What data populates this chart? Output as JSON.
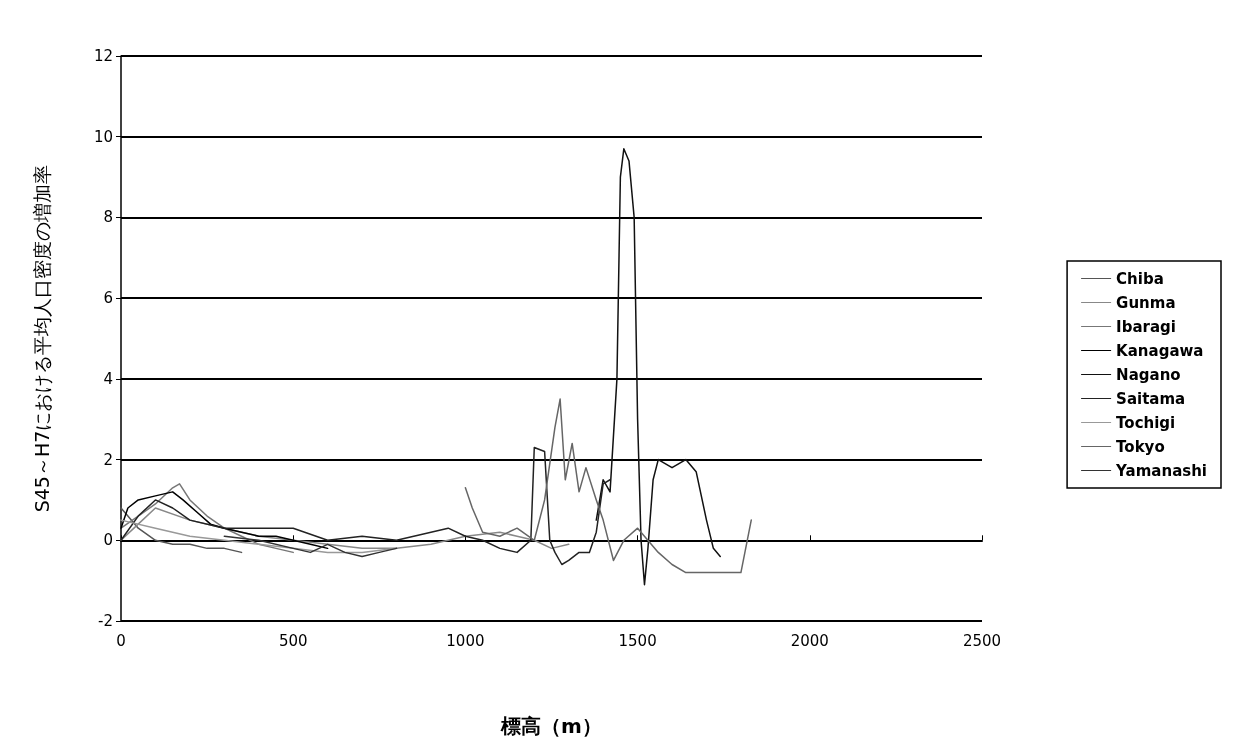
{
  "chart_data": {
    "type": "line",
    "xlabel": "標高（m）",
    "ylabel": "S45～H7における平均人口密度の増加率",
    "xlim": [
      0,
      2500
    ],
    "xticks": [
      0,
      500,
      1000,
      1500,
      2000,
      2500
    ],
    "ylim": [
      -2,
      12
    ],
    "yticks": [
      -2,
      0,
      2,
      4,
      6,
      8,
      10,
      12
    ],
    "grid": "y",
    "legend": "right",
    "marker": "none",
    "line_style": "solid",
    "series": [
      {
        "name": "Chiba",
        "color": "#555555",
        "x": [
          0,
          20,
          50,
          100,
          150,
          200,
          250,
          300,
          350
        ],
        "values": [
          0.8,
          0.6,
          0.3,
          0.0,
          -0.1,
          -0.1,
          -0.2,
          -0.2,
          -0.3
        ]
      },
      {
        "name": "Gunma",
        "color": "#888888",
        "x": [
          0,
          50,
          100,
          200,
          300,
          400,
          500,
          600,
          700,
          800,
          900,
          1000,
          1100,
          1150,
          1200,
          1250,
          1300
        ],
        "values": [
          0.0,
          0.4,
          0.8,
          0.5,
          0.3,
          0.1,
          0.0,
          -0.1,
          -0.2,
          -0.2,
          -0.1,
          0.1,
          0.2,
          0.1,
          0.0,
          -0.2,
          -0.1
        ]
      },
      {
        "name": "Ibaragi",
        "color": "#777777",
        "x": [
          0,
          50,
          100,
          150,
          170,
          200,
          250,
          300,
          350,
          400,
          450,
          500
        ],
        "values": [
          0.3,
          0.6,
          0.9,
          1.3,
          1.4,
          1.0,
          0.6,
          0.3,
          0.1,
          -0.1,
          -0.2,
          -0.3
        ]
      },
      {
        "name": "Kanagawa",
        "color": "#000000",
        "x": [
          0,
          20,
          50,
          100,
          150,
          180,
          220,
          260,
          300,
          350,
          400,
          450,
          500,
          550,
          600
        ],
        "values": [
          0.3,
          0.8,
          1.0,
          1.1,
          1.2,
          1.0,
          0.7,
          0.4,
          0.3,
          0.2,
          0.1,
          0.1,
          0.0,
          -0.1,
          -0.2
        ]
      },
      {
        "name": "Nagano",
        "color": "#111111",
        "x": [
          1380,
          1400,
          1420,
          1440,
          1450,
          1460,
          1475,
          1490,
          1500,
          1510,
          1520,
          1530,
          1545,
          1560,
          1600,
          1640,
          1670,
          1700,
          1720,
          1740
        ],
        "values": [
          0.5,
          1.5,
          1.2,
          4.0,
          9.0,
          9.7,
          9.4,
          8.0,
          3.0,
          0.0,
          -1.1,
          -0.2,
          1.5,
          2.0,
          1.8,
          2.0,
          1.7,
          0.5,
          -0.2,
          -0.4
        ]
      },
      {
        "name": "Saitama",
        "color": "#222222",
        "x": [
          0,
          50,
          100,
          150,
          200,
          300,
          400,
          500,
          600,
          700,
          800,
          900,
          950,
          1000,
          1050,
          1100,
          1150,
          1190,
          1200,
          1230,
          1245,
          1260,
          1280,
          1300,
          1330,
          1360,
          1380,
          1400,
          1420
        ],
        "values": [
          0.0,
          0.6,
          1.0,
          0.8,
          0.5,
          0.3,
          0.3,
          0.3,
          0.0,
          0.1,
          0.0,
          0.2,
          0.3,
          0.1,
          0.0,
          -0.2,
          -0.3,
          0.0,
          2.3,
          2.2,
          0.0,
          -0.3,
          -0.6,
          -0.5,
          -0.3,
          -0.3,
          0.2,
          1.4,
          1.5
        ]
      },
      {
        "name": "Tochigi",
        "color": "#999999",
        "x": [
          0,
          100,
          200,
          300,
          400,
          500,
          600,
          700,
          800
        ],
        "values": [
          0.5,
          0.3,
          0.1,
          0.0,
          -0.1,
          -0.2,
          -0.3,
          -0.3,
          -0.2
        ]
      },
      {
        "name": "Tokyo",
        "color": "#666666",
        "x": [
          1000,
          1020,
          1050,
          1100,
          1150,
          1200,
          1230,
          1260,
          1275,
          1290,
          1310,
          1330,
          1350,
          1380,
          1400,
          1430,
          1460,
          1500,
          1560,
          1600,
          1640,
          1700,
          1800,
          1830
        ],
        "values": [
          1.3,
          0.8,
          0.2,
          0.1,
          0.3,
          0.0,
          1.0,
          2.8,
          3.5,
          1.5,
          2.4,
          1.2,
          1.8,
          1.0,
          0.5,
          -0.5,
          0.0,
          0.3,
          -0.3,
          -0.6,
          -0.8,
          -0.8,
          -0.8,
          0.5
        ]
      },
      {
        "name": "Yamanashi",
        "color": "#333333",
        "x": [
          300,
          400,
          500,
          550,
          600,
          650,
          700,
          750,
          800
        ],
        "values": [
          0.1,
          0.0,
          -0.2,
          -0.3,
          -0.1,
          -0.3,
          -0.4,
          -0.3,
          -0.2
        ]
      }
    ]
  }
}
